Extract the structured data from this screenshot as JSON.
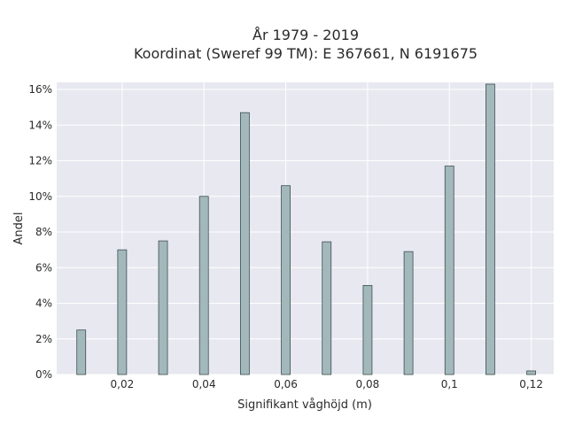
{
  "chart_data": {
    "type": "bar",
    "title_line1": "År 1979 - 2019",
    "title_line2": "Koordinat (Sweref 99 TM): E 367661, N 6191675",
    "xlabel": "Signifikant våghöjd (m)",
    "ylabel": "Andel",
    "x": [
      0.01,
      0.02,
      0.03,
      0.04,
      0.05,
      0.06,
      0.07,
      0.08,
      0.09,
      0.1,
      0.11,
      0.12
    ],
    "values": [
      2.5,
      7.0,
      7.5,
      10.0,
      14.7,
      10.6,
      7.45,
      5.0,
      6.9,
      11.7,
      16.3,
      0.2
    ],
    "xlim": [
      0.004,
      0.1255
    ],
    "ylim": [
      0,
      16.4
    ],
    "xticks": [
      {
        "v": 0.02,
        "label": "0,02"
      },
      {
        "v": 0.04,
        "label": "0,04"
      },
      {
        "v": 0.06,
        "label": "0,06"
      },
      {
        "v": 0.08,
        "label": "0,08"
      },
      {
        "v": 0.1,
        "label": "0,1"
      },
      {
        "v": 0.12,
        "label": "0,12"
      }
    ],
    "yticks": [
      {
        "v": 0,
        "label": "0%"
      },
      {
        "v": 2,
        "label": "2%"
      },
      {
        "v": 4,
        "label": "4%"
      },
      {
        "v": 6,
        "label": "6%"
      },
      {
        "v": 8,
        "label": "8%"
      },
      {
        "v": 10,
        "label": "10%"
      },
      {
        "v": 12,
        "label": "12%"
      },
      {
        "v": 14,
        "label": "14%"
      },
      {
        "v": 16,
        "label": "16%"
      }
    ],
    "grid": true,
    "colors": {
      "plot_bg": "#e8e8f0",
      "grid": "#ffffff",
      "bar_fill": "#a3b8ba",
      "bar_stroke": "#3d4f51"
    }
  }
}
